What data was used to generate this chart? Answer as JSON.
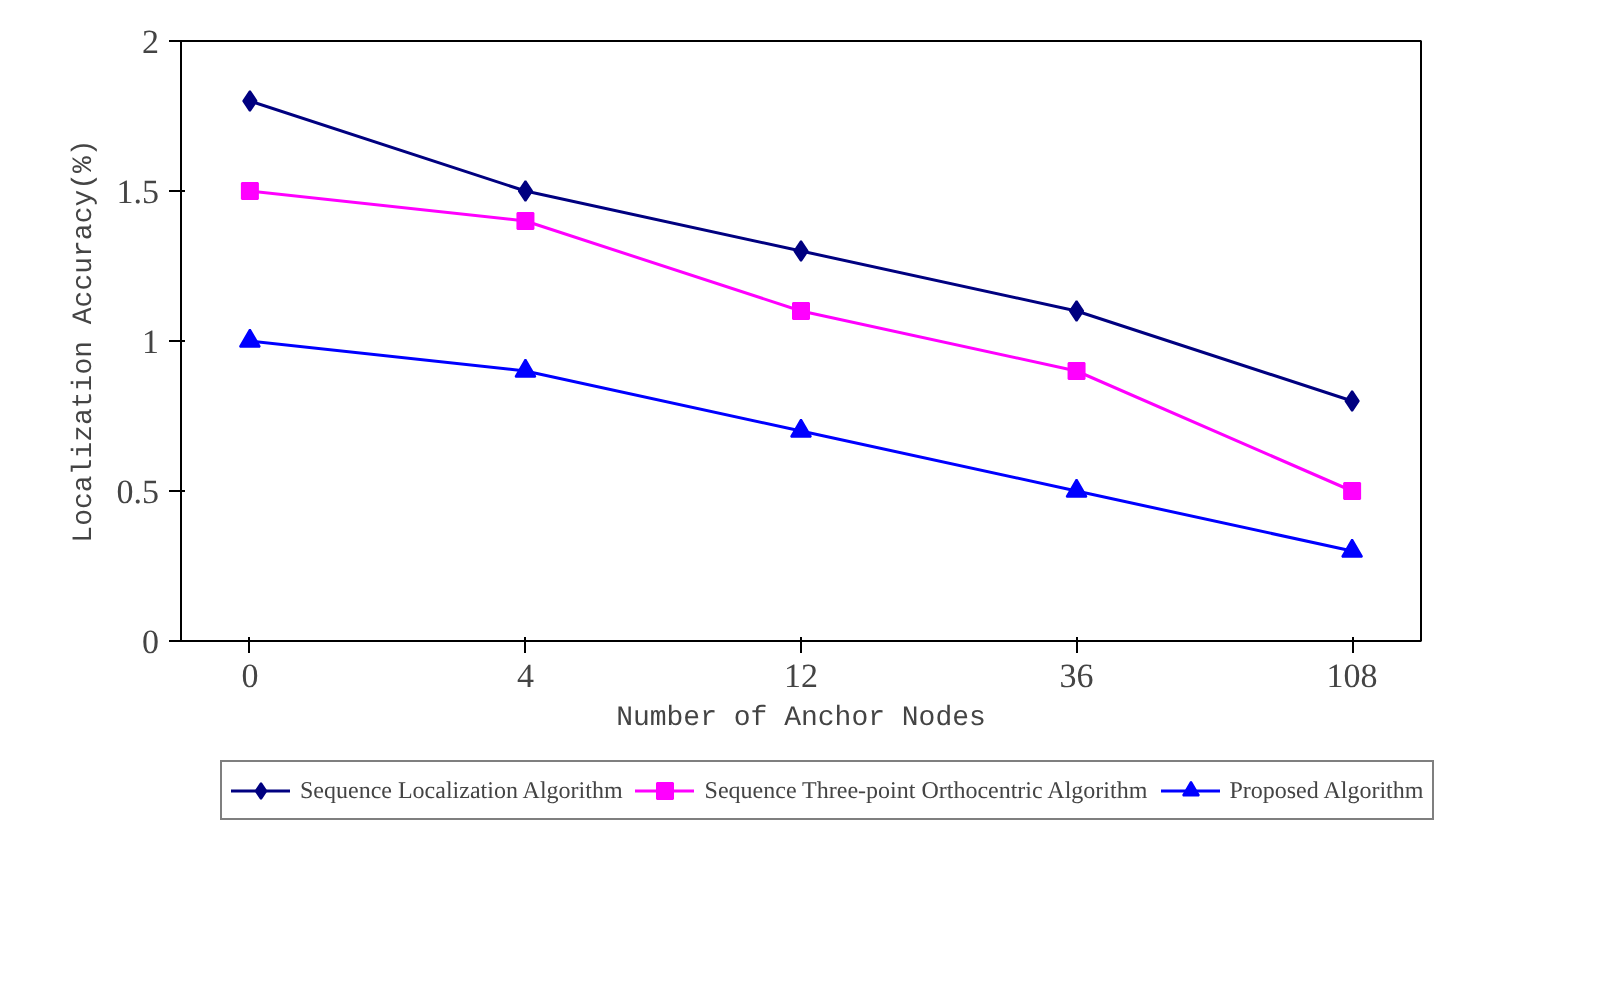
{
  "chart_data": {
    "type": "line",
    "xlabel": "Number of Anchor Nodes",
    "ylabel": "Localization Accuracy(%)",
    "categories": [
      "0",
      "4",
      "12",
      "36",
      "108"
    ],
    "ylim": [
      0,
      2
    ],
    "yticks": [
      0,
      0.5,
      1,
      1.5,
      2
    ],
    "grid": false,
    "legend": "bottom",
    "line_style": "solid",
    "series": [
      {
        "name": "Sequence Localization Algorithm",
        "color": "#000080",
        "marker": "diamond",
        "values": [
          1.8,
          1.5,
          1.3,
          1.1,
          0.8
        ]
      },
      {
        "name": "Sequence Three-point Orthocentric Algorithm",
        "color": "#ff00ff",
        "marker": "square",
        "values": [
          1.5,
          1.4,
          1.1,
          0.9,
          0.5
        ]
      },
      {
        "name": "Proposed Algorithm",
        "color": "#0000ff",
        "marker": "triangle",
        "values": [
          1.0,
          0.9,
          0.7,
          0.5,
          0.3
        ]
      }
    ]
  }
}
